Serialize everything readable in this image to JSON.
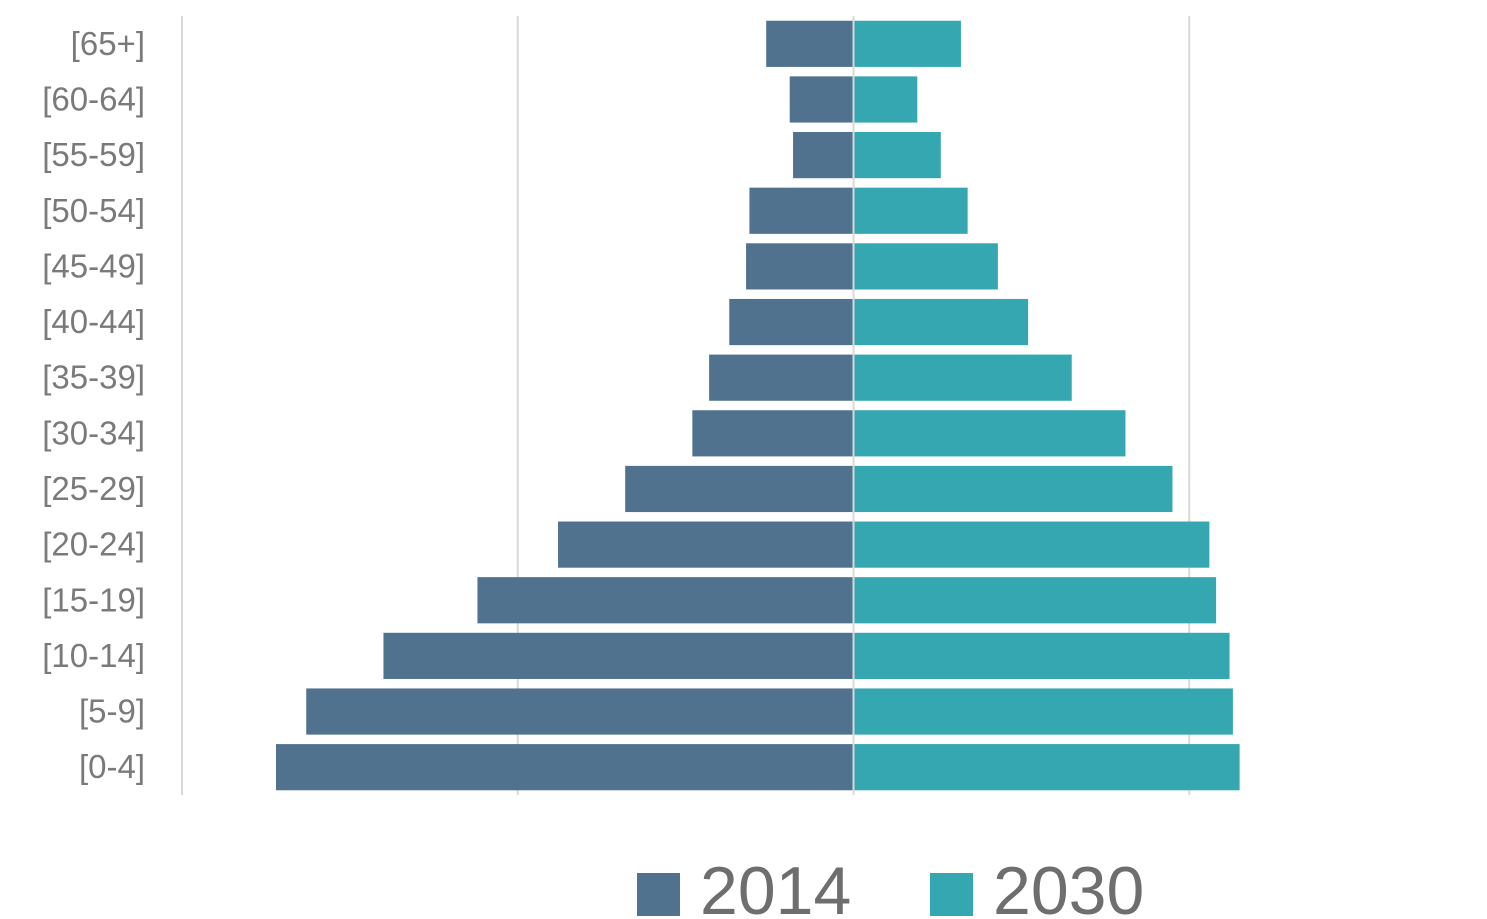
{
  "chart_data": {
    "type": "bar",
    "orientation": "horizontal",
    "layout": "population-pyramid",
    "categories": [
      "[65+]",
      "[60-64]",
      "[55-59]",
      "[50-54]",
      "[45-49]",
      "[40-44]",
      "[35-39]",
      "[30-34]",
      "[25-29]",
      "[20-24]",
      "[15-19]",
      "[10-14]",
      "[5-9]",
      "[0-4]"
    ],
    "series": [
      {
        "name": "2014",
        "color": "#50728f",
        "side": "left",
        "values": [
          26,
          19,
          18,
          31,
          32,
          37,
          43,
          48,
          68,
          88,
          112,
          140,
          163,
          172
        ]
      },
      {
        "name": "2030",
        "color": "#34a7b0",
        "side": "right",
        "values": [
          32,
          19,
          26,
          34,
          43,
          52,
          65,
          81,
          95,
          106,
          108,
          112,
          113,
          115
        ]
      }
    ],
    "xlim": [
      -200,
      200
    ],
    "tick_labels_visible": false,
    "grid": "vertical",
    "legend_position": "bottom"
  }
}
